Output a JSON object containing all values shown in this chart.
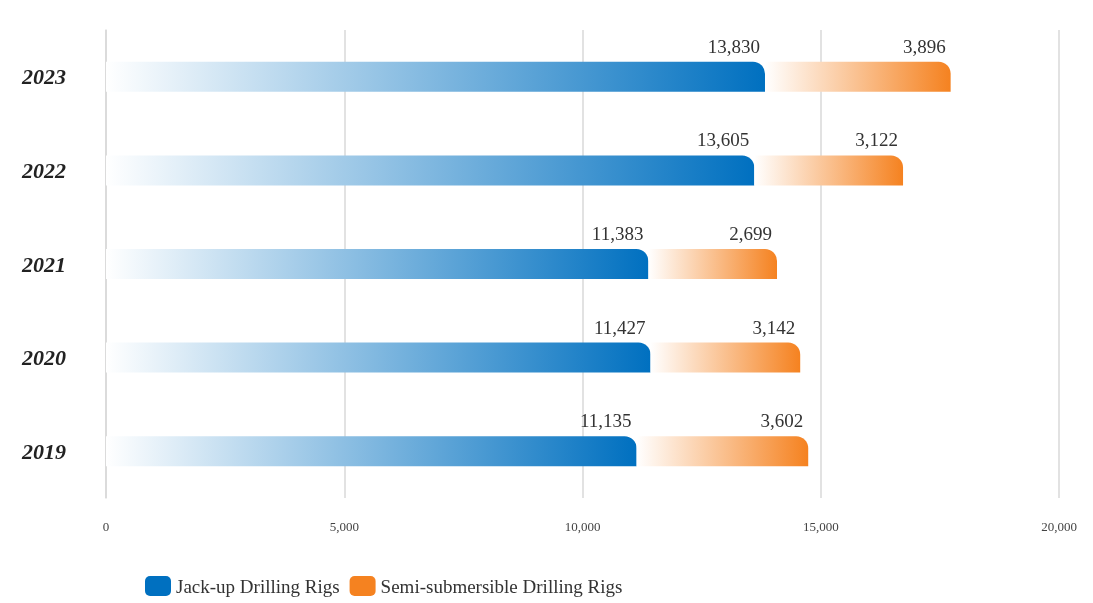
{
  "chart_data": {
    "type": "bar",
    "orientation": "horizontal",
    "stacked": true,
    "categories": [
      "2023",
      "2022",
      "2021",
      "2020",
      "2019"
    ],
    "series": [
      {
        "name": "Jack-up Drilling Rigs",
        "color": "#0070c0",
        "values": [
          13830,
          13605,
          11383,
          11427,
          11135
        ],
        "value_labels": [
          "13,830",
          "13,605",
          "11,383",
          "11,427",
          "11,135"
        ]
      },
      {
        "name": "Semi-submersible Drilling Rigs",
        "color": "#f58220",
        "values": [
          3896,
          3122,
          2699,
          3142,
          3602
        ],
        "value_labels": [
          "3,896",
          "3,122",
          "2,699",
          "3,142",
          "3,602"
        ]
      }
    ],
    "xlim": [
      0,
      20000
    ],
    "xticks": [
      {
        "value": 0,
        "label": "0"
      },
      {
        "value": 5000,
        "label": "5,000"
      },
      {
        "value": 10000,
        "label": "10,000"
      },
      {
        "value": 15000,
        "label": "15,000"
      },
      {
        "value": 20000,
        "label": "20,000"
      }
    ],
    "grid": "x",
    "legend": "bottom left"
  }
}
